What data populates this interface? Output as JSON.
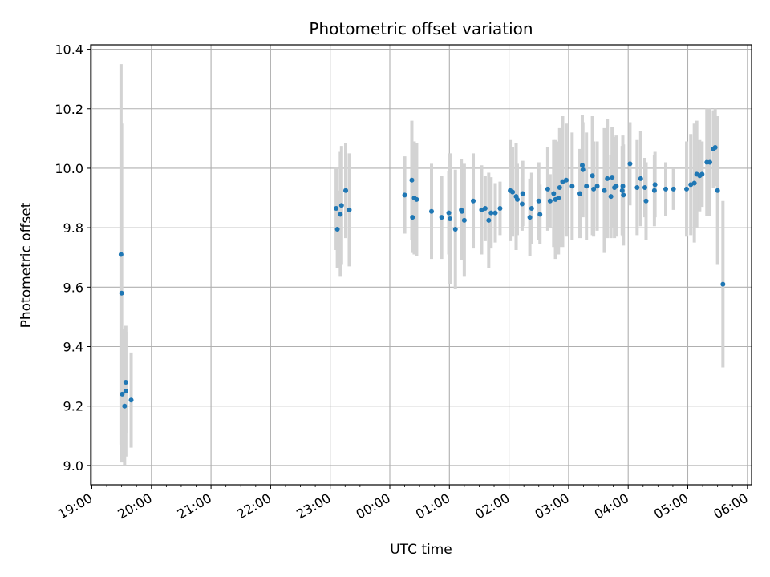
{
  "chart_data": {
    "type": "scatter",
    "title": "Photometric offset variation",
    "xlabel": "UTC time",
    "ylabel": "Photometric offset",
    "x_tick_labels": [
      "19:00",
      "20:00",
      "21:00",
      "22:00",
      "23:00",
      "00:00",
      "01:00",
      "02:00",
      "03:00",
      "04:00",
      "05:00",
      "06:00"
    ],
    "y_tick_labels": [
      "9.0",
      "9.2",
      "9.4",
      "9.6",
      "9.8",
      "10.0",
      "10.2",
      "10.4"
    ],
    "y_ticks": [
      9.0,
      9.2,
      9.4,
      9.6,
      9.8,
      10.0,
      10.2,
      10.4
    ],
    "xlim_hours": [
      18.98,
      30.07
    ],
    "ylim": [
      8.935,
      10.415
    ],
    "grid": true,
    "marker_color": "#1f77b4",
    "errorbar_color": "#d3d3d3",
    "series": [
      {
        "points": [
          [
            19.49,
            9.71,
            0.64
          ],
          [
            19.5,
            9.58,
            0.57
          ],
          [
            19.51,
            9.24,
            0.22
          ],
          [
            19.55,
            9.2,
            0.2
          ],
          [
            19.57,
            9.28,
            0.17
          ],
          [
            19.57,
            9.25,
            0.22
          ],
          [
            19.66,
            9.22,
            0.16
          ],
          [
            23.1,
            9.865,
            0.14
          ],
          [
            23.12,
            9.795,
            0.13
          ],
          [
            23.17,
            9.845,
            0.21
          ],
          [
            23.19,
            9.875,
            0.2
          ],
          [
            23.26,
            9.925,
            0.16
          ],
          [
            23.32,
            9.86,
            0.19
          ],
          [
            24.25,
            9.91,
            0.13
          ],
          [
            24.37,
            9.96,
            0.2
          ],
          [
            24.38,
            9.835,
            0.12
          ],
          [
            24.41,
            9.9,
            0.19
          ],
          [
            24.45,
            9.895,
            0.19
          ],
          [
            24.7,
            9.855,
            0.16
          ],
          [
            24.87,
            9.835,
            0.14
          ],
          [
            24.99,
            9.85,
            0.14
          ],
          [
            25.01,
            9.83,
            0.22
          ],
          [
            25.1,
            9.795,
            0.2
          ],
          [
            25.2,
            9.86,
            0.17
          ],
          [
            25.21,
            9.855,
            0.15
          ],
          [
            25.25,
            9.825,
            0.19
          ],
          [
            25.4,
            9.89,
            0.16
          ],
          [
            25.54,
            9.86,
            0.15
          ],
          [
            25.6,
            9.865,
            0.11
          ],
          [
            25.66,
            9.825,
            0.16
          ],
          [
            25.7,
            9.85,
            0.12
          ],
          [
            25.77,
            9.85,
            0.1
          ],
          [
            25.85,
            9.865,
            0.09
          ],
          [
            26.02,
            9.925,
            0.17
          ],
          [
            26.06,
            9.92,
            0.15
          ],
          [
            26.12,
            9.905,
            0.18
          ],
          [
            26.14,
            9.895,
            0.12
          ],
          [
            26.22,
            9.88,
            0.09
          ],
          [
            26.23,
            9.915,
            0.11
          ],
          [
            26.35,
            9.835,
            0.13
          ],
          [
            26.38,
            9.865,
            0.12
          ],
          [
            26.5,
            9.89,
            0.13
          ],
          [
            26.52,
            9.845,
            0.1
          ],
          [
            26.65,
            9.93,
            0.14
          ],
          [
            26.69,
            9.89,
            0.09
          ],
          [
            26.75,
            9.915,
            0.18
          ],
          [
            26.78,
            9.895,
            0.2
          ],
          [
            26.83,
            9.9,
            0.19
          ],
          [
            26.85,
            9.935,
            0.2
          ],
          [
            26.9,
            9.955,
            0.22
          ],
          [
            26.96,
            9.96,
            0.19
          ],
          [
            27.06,
            9.94,
            0.18
          ],
          [
            27.19,
            9.915,
            0.15
          ],
          [
            27.23,
            10.01,
            0.17
          ],
          [
            27.24,
            9.995,
            0.16
          ],
          [
            27.3,
            9.94,
            0.18
          ],
          [
            27.4,
            9.975,
            0.2
          ],
          [
            27.42,
            9.93,
            0.16
          ],
          [
            27.48,
            9.94,
            0.15
          ],
          [
            27.6,
            9.925,
            0.21
          ],
          [
            27.65,
            9.965,
            0.2
          ],
          [
            27.71,
            9.905,
            0.14
          ],
          [
            27.73,
            9.97,
            0.17
          ],
          [
            27.77,
            9.935,
            0.17
          ],
          [
            27.8,
            9.94,
            0.17
          ],
          [
            27.9,
            9.925,
            0.15
          ],
          [
            27.91,
            9.94,
            0.17
          ],
          [
            27.92,
            9.91,
            0.17
          ],
          [
            28.03,
            10.015,
            0.14
          ],
          [
            28.15,
            9.935,
            0.16
          ],
          [
            28.21,
            9.965,
            0.16
          ],
          [
            28.28,
            9.935,
            0.1
          ],
          [
            28.3,
            9.89,
            0.13
          ],
          [
            28.44,
            9.925,
            0.12
          ],
          [
            28.45,
            9.945,
            0.11
          ],
          [
            28.63,
            9.93,
            0.09
          ],
          [
            28.76,
            9.93,
            0.07
          ],
          [
            28.98,
            9.93,
            0.16
          ],
          [
            29.05,
            9.945,
            0.17
          ],
          [
            29.11,
            9.95,
            0.2
          ],
          [
            29.15,
            9.98,
            0.18
          ],
          [
            29.2,
            9.975,
            0.12
          ],
          [
            29.24,
            9.98,
            0.11
          ],
          [
            29.32,
            10.02,
            0.18
          ],
          [
            29.37,
            10.02,
            0.18
          ],
          [
            29.43,
            10.065,
            0.13
          ],
          [
            29.46,
            10.07,
            0.13
          ],
          [
            29.5,
            9.925,
            0.25
          ],
          [
            29.59,
            9.61,
            0.28
          ]
        ]
      }
    ]
  }
}
